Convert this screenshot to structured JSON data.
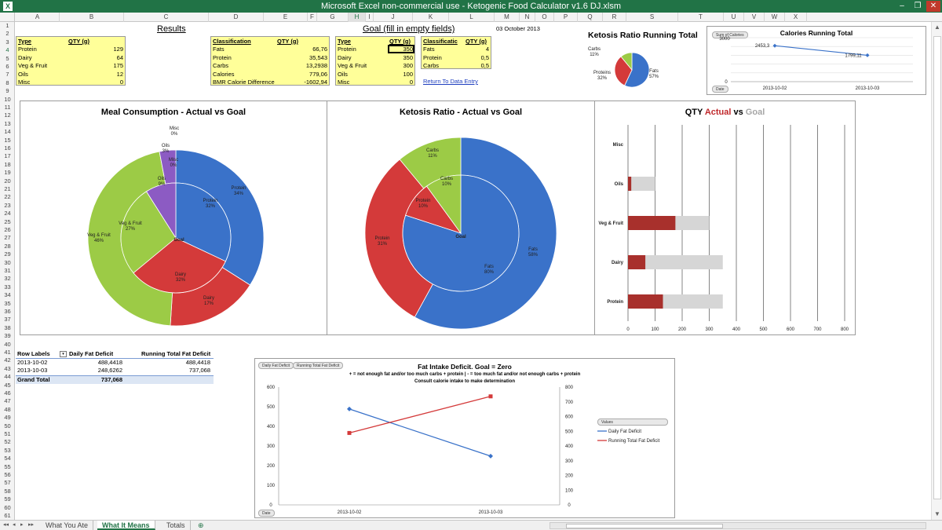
{
  "window": {
    "title": "Microsoft Excel non-commercial use - Ketogenic Food Calculator v1.6 DJ.xlsm",
    "minimize": "–",
    "restore": "❐",
    "close": "✕"
  },
  "columns": [
    "A",
    "B",
    "C",
    "D",
    "E",
    "F",
    "G",
    "H",
    "I",
    "J",
    "K",
    "L",
    "M",
    "N",
    "O",
    "P",
    "Q",
    "R",
    "S",
    "T",
    "U",
    "V",
    "W",
    "X"
  ],
  "rows": [
    "1",
    "2",
    "3",
    "4",
    "5",
    "6",
    "7",
    "8",
    "9",
    "10",
    "11",
    "12",
    "13",
    "14",
    "15",
    "16",
    "17",
    "18",
    "19",
    "20",
    "21",
    "22",
    "23",
    "24",
    "25",
    "26",
    "27",
    "28",
    "29",
    "30",
    "31",
    "32",
    "33",
    "34",
    "35",
    "36",
    "37",
    "38",
    "39",
    "40",
    "41",
    "42",
    "43",
    "44",
    "45",
    "46",
    "47",
    "48",
    "49",
    "50",
    "51",
    "52",
    "53",
    "54",
    "55",
    "56",
    "57",
    "58",
    "59",
    "60",
    "61"
  ],
  "headings": {
    "results": "Results",
    "goal": "Goal (fill in empty fields)",
    "date": "03 October 2013"
  },
  "results_table": {
    "headers": [
      "Type",
      "QTY (g)"
    ],
    "rows": [
      {
        "type": "Protein",
        "qty": "129"
      },
      {
        "type": "Dairy",
        "qty": "64"
      },
      {
        "type": "Veg & Fruit",
        "qty": "175"
      },
      {
        "type": "Oils",
        "qty": "12"
      },
      {
        "type": "Misc",
        "qty": "0"
      }
    ]
  },
  "classification_table": {
    "headers": [
      "Classification",
      "QTY (g)"
    ],
    "rows": [
      {
        "name": "Fats",
        "qty": "66,76"
      },
      {
        "name": "Protein",
        "qty": "35,543"
      },
      {
        "name": "Carbs",
        "qty": "13,2938"
      },
      {
        "name": "Calories",
        "qty": "779,06"
      },
      {
        "name": "BMR Calorie Difference",
        "qty": "-1602,94"
      }
    ]
  },
  "goal_table": {
    "headers": [
      "Type",
      "QTY (g)"
    ],
    "rows": [
      {
        "type": "Protein",
        "qty": "350"
      },
      {
        "type": "Dairy",
        "qty": "350"
      },
      {
        "type": "Veg & Fruit",
        "qty": "300"
      },
      {
        "type": "Oils",
        "qty": "100"
      },
      {
        "type": "Misc",
        "qty": "0"
      }
    ]
  },
  "goal_class_table": {
    "headers": [
      "Classificatic",
      "QTY (g)"
    ],
    "rows": [
      {
        "name": "Fats",
        "qty": "4"
      },
      {
        "name": "Protein",
        "qty": "0,5"
      },
      {
        "name": "Carbs",
        "qty": "0,5"
      }
    ],
    "link": "Return To Data Entry"
  },
  "pivot": {
    "headers": [
      "Row Labels",
      "Daily Fat Deficit",
      "Running Total Fat Deficit"
    ],
    "rows": [
      {
        "label": "2013-10-02",
        "daily": "488,4418",
        "running": "488,4418"
      },
      {
        "label": "2013-10-03",
        "daily": "248,6262",
        "running": "737,068"
      }
    ],
    "total": {
      "label": "Grand Total",
      "daily": "737,068"
    }
  },
  "tabs": [
    "What You Ate",
    "What It Means",
    "Totals"
  ],
  "colors": {
    "blue": "#3a72c9",
    "red": "#d43a3a",
    "green": "#9ccb46",
    "purple": "#8c5bc3",
    "darkred": "#a8302c",
    "grey": "#d6d6d6"
  },
  "charts": {
    "ketosis_running": {
      "title": "Ketosis Ratio Running Total",
      "slices": [
        {
          "name": "Fats",
          "value": 57,
          "label": "57%"
        },
        {
          "name": "Proteins",
          "value": 32,
          "label": "32%"
        },
        {
          "name": "Carbs",
          "value": 11,
          "label": "11%"
        }
      ]
    },
    "calories_running": {
      "title": "Calories Running Total",
      "button": "Sum of Calories",
      "y_top_label": "3000",
      "y_bottom_label": "0",
      "x": [
        "2013-10-02",
        "2013-10-03"
      ],
      "values": [
        2453.3,
        1799.11
      ],
      "value_labels": [
        "2453,3",
        "1799,11"
      ],
      "ymax": 3000,
      "date_button": "Date"
    },
    "meal": {
      "title": "Meal Consumption - Actual vs Goal",
      "center": "Goal",
      "outer": [
        {
          "name": "Protein",
          "value": 34,
          "label": "34%"
        },
        {
          "name": "Dairy",
          "value": 17,
          "label": "17%"
        },
        {
          "name": "Veg & Fruit",
          "value": 46,
          "label": "46%"
        },
        {
          "name": "Oils",
          "value": 3,
          "label": "3%"
        },
        {
          "name": "Misc",
          "value": 0,
          "label": "0%"
        }
      ],
      "inner": [
        {
          "name": "Protein",
          "value": 32,
          "label": "32%"
        },
        {
          "name": "Dairy",
          "value": 32,
          "label": "32%"
        },
        {
          "name": "Veg & Fruit",
          "value": 27,
          "label": "27%"
        },
        {
          "name": "Oils",
          "value": 9,
          "label": "9%"
        },
        {
          "name": "Misc",
          "value": 0,
          "label": "0%"
        }
      ]
    },
    "ketosis": {
      "title": "Ketosis Ratio - Actual vs Goal",
      "center": "Goal",
      "outer": [
        {
          "name": "Fats",
          "value": 58,
          "label": "58%"
        },
        {
          "name": "Protein",
          "value": 31,
          "label": "31%"
        },
        {
          "name": "Carbs",
          "value": 11,
          "label": "11%"
        }
      ],
      "inner": [
        {
          "name": "Fats",
          "value": 80,
          "label": "80%"
        },
        {
          "name": "Protein",
          "value": 10,
          "label": "10%"
        },
        {
          "name": "Carbs",
          "value": 10,
          "label": "10%"
        }
      ]
    },
    "qty": {
      "title_prefix": "QTY ",
      "title_actual": "Actual",
      "title_mid": " vs ",
      "title_goal": "Goal",
      "categories": [
        "Misc",
        "Oils",
        "Veg & Fruit",
        "Dairy",
        "Protein"
      ],
      "actual": [
        0,
        12,
        175,
        64,
        129
      ],
      "goal": [
        0,
        100,
        300,
        350,
        350
      ],
      "ticks": [
        "0",
        "100",
        "200",
        "300",
        "400",
        "500",
        "600",
        "700",
        "800"
      ],
      "xmax": 800
    },
    "fat": {
      "title": "Fat Intake Deficit. Goal = Zero",
      "subtitle1": "+ = not enough fat and/or too much carbs + protein  |  - = too much fat and/or not enough carbs + protein",
      "subtitle2": "Consult calorie intake to make determination",
      "buttons": [
        "Daily Fat Deficit",
        "Running Total Fat Deficit"
      ],
      "legend_title": "Values",
      "x": [
        "2013-10-02",
        "2013-10-03"
      ],
      "series": [
        {
          "name": "Daily Fat Deficit",
          "values": [
            488.4418,
            248.6262
          ],
          "axis": "left"
        },
        {
          "name": "Running Total Fat Deficit",
          "values": [
            488.4418,
            737.068
          ],
          "axis": "right"
        }
      ],
      "left_ticks": [
        "600",
        "500",
        "400",
        "300",
        "200",
        "100",
        "0"
      ],
      "right_ticks": [
        "800",
        "700",
        "600",
        "500",
        "400",
        "300",
        "200",
        "100",
        "0"
      ],
      "left_max": 600,
      "right_max": 800,
      "date_button": "Date"
    }
  }
}
